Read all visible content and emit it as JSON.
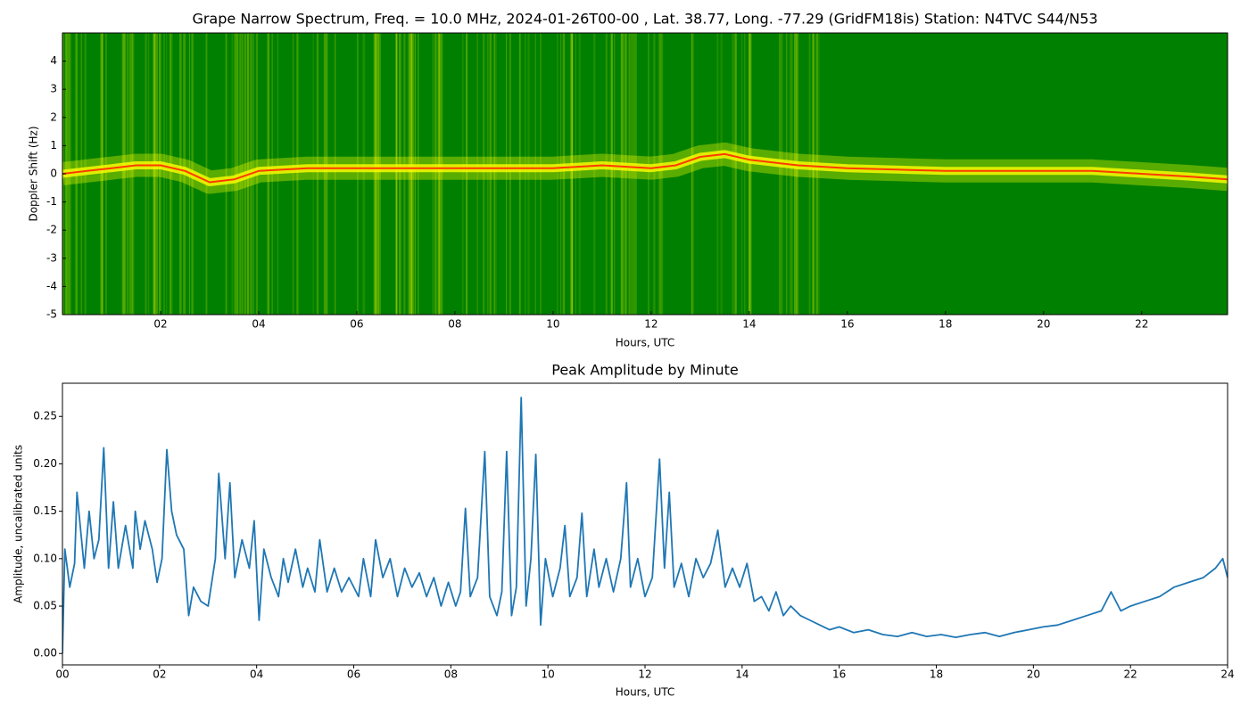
{
  "chart_data": [
    {
      "type": "spectrogram",
      "title": "Grape Narrow Spectrum, Freq. = 10.0 MHz, 2024-01-26T00-00 , Lat.  38.77, Long. -77.29 (GridFM18is) Station: N4TVC S44/N53",
      "x_label": "Hours, UTC",
      "y_label": "Doppler Shift (Hz)",
      "background_color": "#008000",
      "band_color": "#ffff00",
      "color": "#ff3a00",
      "x": [
        0,
        0.5,
        1,
        1.5,
        2,
        2.5,
        3,
        3.5,
        4,
        5,
        6,
        7,
        8,
        9,
        10,
        11,
        12,
        12.5,
        13,
        13.5,
        14,
        15,
        16,
        17,
        18,
        19,
        20,
        21,
        22,
        23,
        23.75
      ],
      "values": [
        0.0,
        0.1,
        0.2,
        0.3,
        0.3,
        0.1,
        -0.3,
        -0.2,
        0.1,
        0.2,
        0.2,
        0.2,
        0.2,
        0.2,
        0.2,
        0.3,
        0.2,
        0.3,
        0.6,
        0.7,
        0.5,
        0.3,
        0.2,
        0.15,
        0.1,
        0.1,
        0.1,
        0.1,
        0.0,
        -0.1,
        -0.2
      ],
      "xlim": [
        0,
        23.75
      ],
      "ylim": [
        -5,
        5
      ],
      "xticks": [
        {
          "value": 2,
          "label": "02"
        },
        {
          "value": 4,
          "label": "04"
        },
        {
          "value": 6,
          "label": "06"
        },
        {
          "value": 8,
          "label": "08"
        },
        {
          "value": 10,
          "label": "10"
        },
        {
          "value": 12,
          "label": "12"
        },
        {
          "value": 14,
          "label": "14"
        },
        {
          "value": 16,
          "label": "16"
        },
        {
          "value": 18,
          "label": "18"
        },
        {
          "value": 20,
          "label": "20"
        },
        {
          "value": 22,
          "label": "22"
        }
      ],
      "yticks": [
        -5,
        -4,
        -3,
        -2,
        -1,
        0,
        1,
        2,
        3,
        4
      ]
    },
    {
      "type": "line",
      "title": "Peak Amplitude by Minute",
      "x_label": "Hours, UTC",
      "y_label": "Amplitude, uncalibrated units",
      "color": "#1f77b4",
      "x": [
        0,
        0.05,
        0.15,
        0.25,
        0.3,
        0.45,
        0.55,
        0.65,
        0.75,
        0.85,
        0.95,
        1.05,
        1.15,
        1.3,
        1.45,
        1.5,
        1.6,
        1.7,
        1.85,
        1.95,
        2.05,
        2.15,
        2.25,
        2.35,
        2.5,
        2.6,
        2.7,
        2.85,
        3.0,
        3.15,
        3.22,
        3.35,
        3.45,
        3.55,
        3.7,
        3.85,
        3.95,
        4.05,
        4.15,
        4.3,
        4.45,
        4.55,
        4.65,
        4.8,
        4.95,
        5.05,
        5.2,
        5.3,
        5.45,
        5.6,
        5.75,
        5.9,
        6.1,
        6.2,
        6.35,
        6.45,
        6.6,
        6.75,
        6.9,
        7.05,
        7.2,
        7.35,
        7.5,
        7.65,
        7.8,
        7.95,
        8.1,
        8.2,
        8.3,
        8.4,
        8.55,
        8.7,
        8.8,
        8.95,
        9.05,
        9.15,
        9.25,
        9.35,
        9.45,
        9.55,
        9.65,
        9.75,
        9.85,
        9.95,
        10.1,
        10.25,
        10.35,
        10.45,
        10.6,
        10.7,
        10.8,
        10.95,
        11.05,
        11.2,
        11.35,
        11.5,
        11.62,
        11.7,
        11.85,
        12.0,
        12.15,
        12.3,
        12.4,
        12.5,
        12.6,
        12.75,
        12.9,
        13.05,
        13.2,
        13.35,
        13.5,
        13.65,
        13.8,
        13.95,
        14.1,
        14.25,
        14.4,
        14.55,
        14.7,
        14.85,
        15.0,
        15.2,
        15.4,
        15.6,
        15.8,
        16.0,
        16.3,
        16.6,
        16.9,
        17.2,
        17.5,
        17.8,
        18.1,
        18.4,
        18.7,
        19.0,
        19.3,
        19.6,
        19.9,
        20.2,
        20.5,
        20.8,
        21.1,
        21.4,
        21.6,
        21.8,
        22.0,
        22.3,
        22.6,
        22.9,
        23.2,
        23.5,
        23.75,
        23.9,
        24.0
      ],
      "values": [
        0.0,
        0.11,
        0.07,
        0.095,
        0.17,
        0.09,
        0.15,
        0.1,
        0.12,
        0.217,
        0.09,
        0.16,
        0.09,
        0.135,
        0.09,
        0.15,
        0.11,
        0.14,
        0.11,
        0.075,
        0.1,
        0.215,
        0.15,
        0.125,
        0.11,
        0.04,
        0.07,
        0.055,
        0.05,
        0.1,
        0.19,
        0.1,
        0.18,
        0.08,
        0.12,
        0.09,
        0.14,
        0.035,
        0.11,
        0.08,
        0.06,
        0.1,
        0.075,
        0.11,
        0.07,
        0.09,
        0.065,
        0.12,
        0.065,
        0.09,
        0.065,
        0.08,
        0.06,
        0.1,
        0.06,
        0.12,
        0.08,
        0.1,
        0.06,
        0.09,
        0.07,
        0.085,
        0.06,
        0.08,
        0.05,
        0.075,
        0.05,
        0.065,
        0.153,
        0.06,
        0.08,
        0.213,
        0.06,
        0.04,
        0.065,
        0.213,
        0.04,
        0.07,
        0.27,
        0.05,
        0.1,
        0.21,
        0.03,
        0.1,
        0.06,
        0.09,
        0.135,
        0.06,
        0.08,
        0.148,
        0.06,
        0.11,
        0.07,
        0.1,
        0.065,
        0.1,
        0.18,
        0.07,
        0.1,
        0.06,
        0.08,
        0.205,
        0.09,
        0.17,
        0.07,
        0.095,
        0.06,
        0.1,
        0.08,
        0.095,
        0.13,
        0.07,
        0.09,
        0.07,
        0.095,
        0.055,
        0.06,
        0.045,
        0.065,
        0.04,
        0.05,
        0.04,
        0.035,
        0.03,
        0.025,
        0.028,
        0.022,
        0.025,
        0.02,
        0.018,
        0.022,
        0.018,
        0.02,
        0.017,
        0.02,
        0.022,
        0.018,
        0.022,
        0.025,
        0.028,
        0.03,
        0.035,
        0.04,
        0.045,
        0.065,
        0.045,
        0.05,
        0.055,
        0.06,
        0.07,
        0.075,
        0.08,
        0.09,
        0.1,
        0.08
      ],
      "xlim": [
        0,
        24
      ],
      "ylim": [
        -0.012,
        0.285
      ],
      "xticks": [
        {
          "value": 0,
          "label": "00"
        },
        {
          "value": 2,
          "label": "02"
        },
        {
          "value": 4,
          "label": "04"
        },
        {
          "value": 6,
          "label": "06"
        },
        {
          "value": 8,
          "label": "08"
        },
        {
          "value": 10,
          "label": "10"
        },
        {
          "value": 12,
          "label": "12"
        },
        {
          "value": 14,
          "label": "14"
        },
        {
          "value": 16,
          "label": "16"
        },
        {
          "value": 18,
          "label": "18"
        },
        {
          "value": 20,
          "label": "20"
        },
        {
          "value": 22,
          "label": "22"
        },
        {
          "value": 24,
          "label": "24"
        }
      ],
      "yticks": [
        {
          "value": 0,
          "label": "0.00"
        },
        {
          "value": 0.05,
          "label": "0.05"
        },
        {
          "value": 0.1,
          "label": "0.10"
        },
        {
          "value": 0.15,
          "label": "0.15"
        },
        {
          "value": 0.2,
          "label": "0.20"
        },
        {
          "value": 0.25,
          "label": "0.25"
        }
      ]
    }
  ]
}
